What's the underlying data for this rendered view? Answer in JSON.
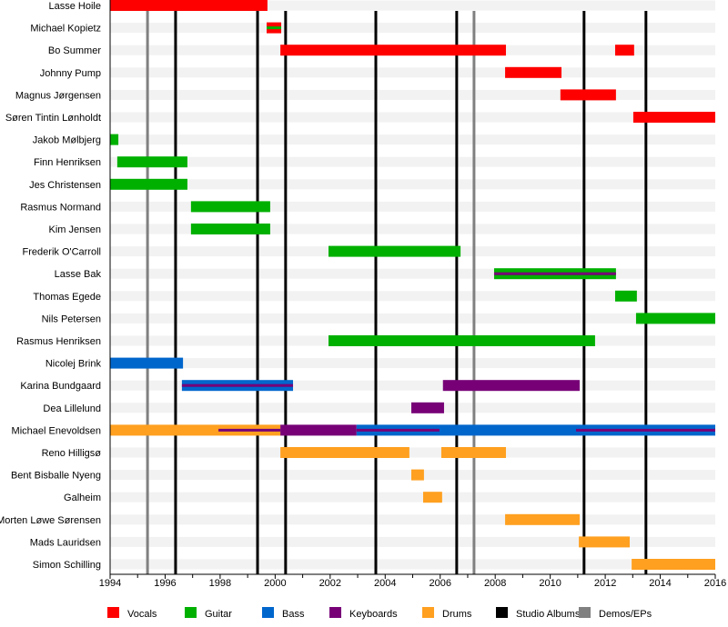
{
  "chart_data": {
    "type": "timeline",
    "xlim": [
      1994,
      2016
    ],
    "x_ticks": [
      "1994",
      "1996",
      "1998",
      "2000",
      "2002",
      "2004",
      "2006",
      "2008",
      "2010",
      "2012",
      "2014",
      "2016"
    ],
    "minor_ticks_every_year": true,
    "roles": [
      {
        "key": "vocals",
        "name": "Vocals",
        "color": "#ff0000"
      },
      {
        "key": "guitar",
        "name": "Guitar",
        "color": "#00b000"
      },
      {
        "key": "bass",
        "name": "Bass",
        "color": "#0066cc"
      },
      {
        "key": "keyboards",
        "name": "Keyboards",
        "color": "#770077"
      },
      {
        "key": "drums",
        "name": "Drums",
        "color": "#ffa020"
      }
    ],
    "event_lines": [
      {
        "name": "Studio Albums",
        "color": "#000000",
        "years": [
          1996.38,
          1999.36,
          2000.38,
          2003.66,
          2006.6,
          2011.23,
          2013.48
        ]
      },
      {
        "name": "Demos/EPs",
        "color": "#808080",
        "years": [
          1995.36,
          2007.23
        ]
      }
    ],
    "members": [
      {
        "name": "Lasse Hoile",
        "bars": [
          {
            "role": "vocals",
            "start": 1994,
            "end": 1999.72
          }
        ]
      },
      {
        "name": "Michael Kopietz",
        "bars": [
          {
            "role": "vocals",
            "start": 1999.69,
            "end": 2000.22
          },
          {
            "role": "guitar",
            "start": 1999.69,
            "end": 2000.22,
            "thin": true
          }
        ]
      },
      {
        "name": "Bo Summer",
        "bars": [
          {
            "role": "vocals",
            "start": 2000.19,
            "end": 2008.39
          },
          {
            "role": "vocals",
            "start": 2012.36,
            "end": 2013.05
          }
        ]
      },
      {
        "name": "Johnny Pump",
        "bars": [
          {
            "role": "vocals",
            "start": 2008.36,
            "end": 2010.41
          }
        ]
      },
      {
        "name": "Magnus Jørgensen",
        "bars": [
          {
            "role": "vocals",
            "start": 2010.37,
            "end": 2012.39
          }
        ]
      },
      {
        "name": "Søren Tintin Lønholdt",
        "bars": [
          {
            "role": "vocals",
            "start": 2013.02,
            "end": 2016
          }
        ]
      },
      {
        "name": "Jakob Mølbjerg",
        "bars": [
          {
            "role": "guitar",
            "start": 1994,
            "end": 1994.3
          }
        ]
      },
      {
        "name": "Finn Henriksen",
        "bars": [
          {
            "role": "guitar",
            "start": 1994.26,
            "end": 1996.81
          }
        ]
      },
      {
        "name": "Jes Christensen",
        "bars": [
          {
            "role": "guitar",
            "start": 1994,
            "end": 1996.81
          }
        ]
      },
      {
        "name": "Rasmus Normand",
        "bars": [
          {
            "role": "guitar",
            "start": 1996.94,
            "end": 1999.82
          }
        ]
      },
      {
        "name": "Kim Jensen",
        "bars": [
          {
            "role": "guitar",
            "start": 1996.94,
            "end": 1999.82
          }
        ]
      },
      {
        "name": "Frederik O'Carroll",
        "bars": [
          {
            "role": "guitar",
            "start": 2001.94,
            "end": 2006.74
          }
        ]
      },
      {
        "name": "Lasse Bak",
        "bars": [
          {
            "role": "guitar",
            "start": 2007.96,
            "end": 2012.39
          },
          {
            "role": "keyboards",
            "start": 2007.96,
            "end": 2012.39,
            "thin": true
          }
        ]
      },
      {
        "name": "Thomas Egede",
        "bars": [
          {
            "role": "guitar",
            "start": 2012.36,
            "end": 2013.15
          }
        ]
      },
      {
        "name": "Nils Petersen",
        "bars": [
          {
            "role": "guitar",
            "start": 2013.12,
            "end": 2016
          }
        ]
      },
      {
        "name": "Rasmus Henriksen",
        "bars": [
          {
            "role": "guitar",
            "start": 2001.94,
            "end": 2011.63
          }
        ]
      },
      {
        "name": "Nicolej Brink",
        "bars": [
          {
            "role": "bass",
            "start": 1994,
            "end": 1996.65
          }
        ]
      },
      {
        "name": "Karina Bundgaard",
        "bars": [
          {
            "role": "bass",
            "start": 1996.61,
            "end": 2000.65
          },
          {
            "role": "keyboards",
            "start": 1996.61,
            "end": 2000.65,
            "thin": true
          },
          {
            "role": "keyboards",
            "start": 2006.1,
            "end": 2011.07
          }
        ]
      },
      {
        "name": "Dea Lillelund",
        "bars": [
          {
            "role": "keyboards",
            "start": 2004.95,
            "end": 2006.14
          }
        ]
      },
      {
        "name": "Michael Enevoldsen",
        "bars": [
          {
            "role": "drums",
            "start": 1994,
            "end": 2000.19
          },
          {
            "role": "keyboards",
            "start": 1997.94,
            "end": 2000.19,
            "thin": true
          },
          {
            "role": "keyboards",
            "start": 2000.19,
            "end": 2002.96
          },
          {
            "role": "bass",
            "start": 2002.96,
            "end": 2016
          },
          {
            "role": "keyboards",
            "start": 2002.96,
            "end": 2005.97,
            "thin": true
          },
          {
            "role": "keyboards",
            "start": 2010.94,
            "end": 2016,
            "thin": true
          }
        ]
      },
      {
        "name": "Reno Hilligsø",
        "bars": [
          {
            "role": "drums",
            "start": 2000.19,
            "end": 2004.88
          },
          {
            "role": "drums",
            "start": 2006.04,
            "end": 2008.39
          }
        ]
      },
      {
        "name": "Bent Bisballe Nyeng",
        "bars": [
          {
            "role": "drums",
            "start": 2004.95,
            "end": 2005.41
          }
        ]
      },
      {
        "name": "Galheim",
        "bars": [
          {
            "role": "drums",
            "start": 2005.38,
            "end": 2006.07
          }
        ]
      },
      {
        "name": "Morten Løwe Sørensen",
        "bars": [
          {
            "role": "drums",
            "start": 2008.36,
            "end": 2011.07
          }
        ]
      },
      {
        "name": "Mads Lauridsen",
        "bars": [
          {
            "role": "drums",
            "start": 2011.04,
            "end": 2012.89
          }
        ]
      },
      {
        "name": "Simon Schilling",
        "bars": [
          {
            "role": "drums",
            "start": 2012.96,
            "end": 2016
          }
        ]
      }
    ],
    "legend": [
      {
        "label": "Vocals",
        "color": "#ff0000"
      },
      {
        "label": "Guitar",
        "color": "#00b000"
      },
      {
        "label": "Bass",
        "color": "#0066cc"
      },
      {
        "label": "Keyboards",
        "color": "#770077"
      },
      {
        "label": "Drums",
        "color": "#ffa020"
      },
      {
        "label": "Studio Albums",
        "color": "#000000"
      },
      {
        "label": "Demos/EPs",
        "color": "#808080"
      }
    ],
    "legend_position": "bottom",
    "grid": false
  }
}
